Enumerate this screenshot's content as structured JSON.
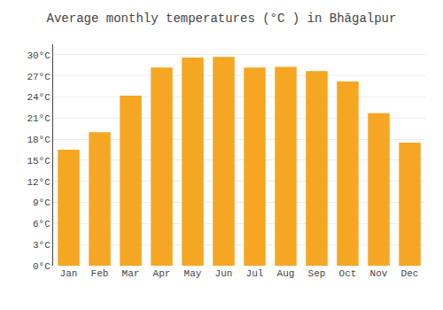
{
  "chart_data": {
    "type": "bar",
    "title": "Average monthly temperatures (°C ) in Bhāgalpur",
    "categories": [
      "Jan",
      "Feb",
      "Mar",
      "Apr",
      "May",
      "Jun",
      "Jul",
      "Aug",
      "Sep",
      "Oct",
      "Nov",
      "Dec"
    ],
    "values": [
      16.5,
      19.0,
      24.2,
      28.2,
      29.6,
      29.7,
      28.2,
      28.3,
      27.7,
      26.2,
      21.7,
      17.5
    ],
    "color": "#F5A623",
    "ylim": [
      0,
      31.5
    ],
    "yticks": [
      {
        "value": 0,
        "label": "0°C"
      },
      {
        "value": 3,
        "label": "3°C"
      },
      {
        "value": 6,
        "label": "6°C"
      },
      {
        "value": 9,
        "label": "9°C"
      },
      {
        "value": 12,
        "label": "12°C"
      },
      {
        "value": 15,
        "label": "15°C"
      },
      {
        "value": 18,
        "label": "18°C"
      },
      {
        "value": 21,
        "label": "21°C"
      },
      {
        "value": 24,
        "label": "24°C"
      },
      {
        "value": 27,
        "label": "27°C"
      },
      {
        "value": 30,
        "label": "30°C"
      }
    ],
    "grid": true
  }
}
